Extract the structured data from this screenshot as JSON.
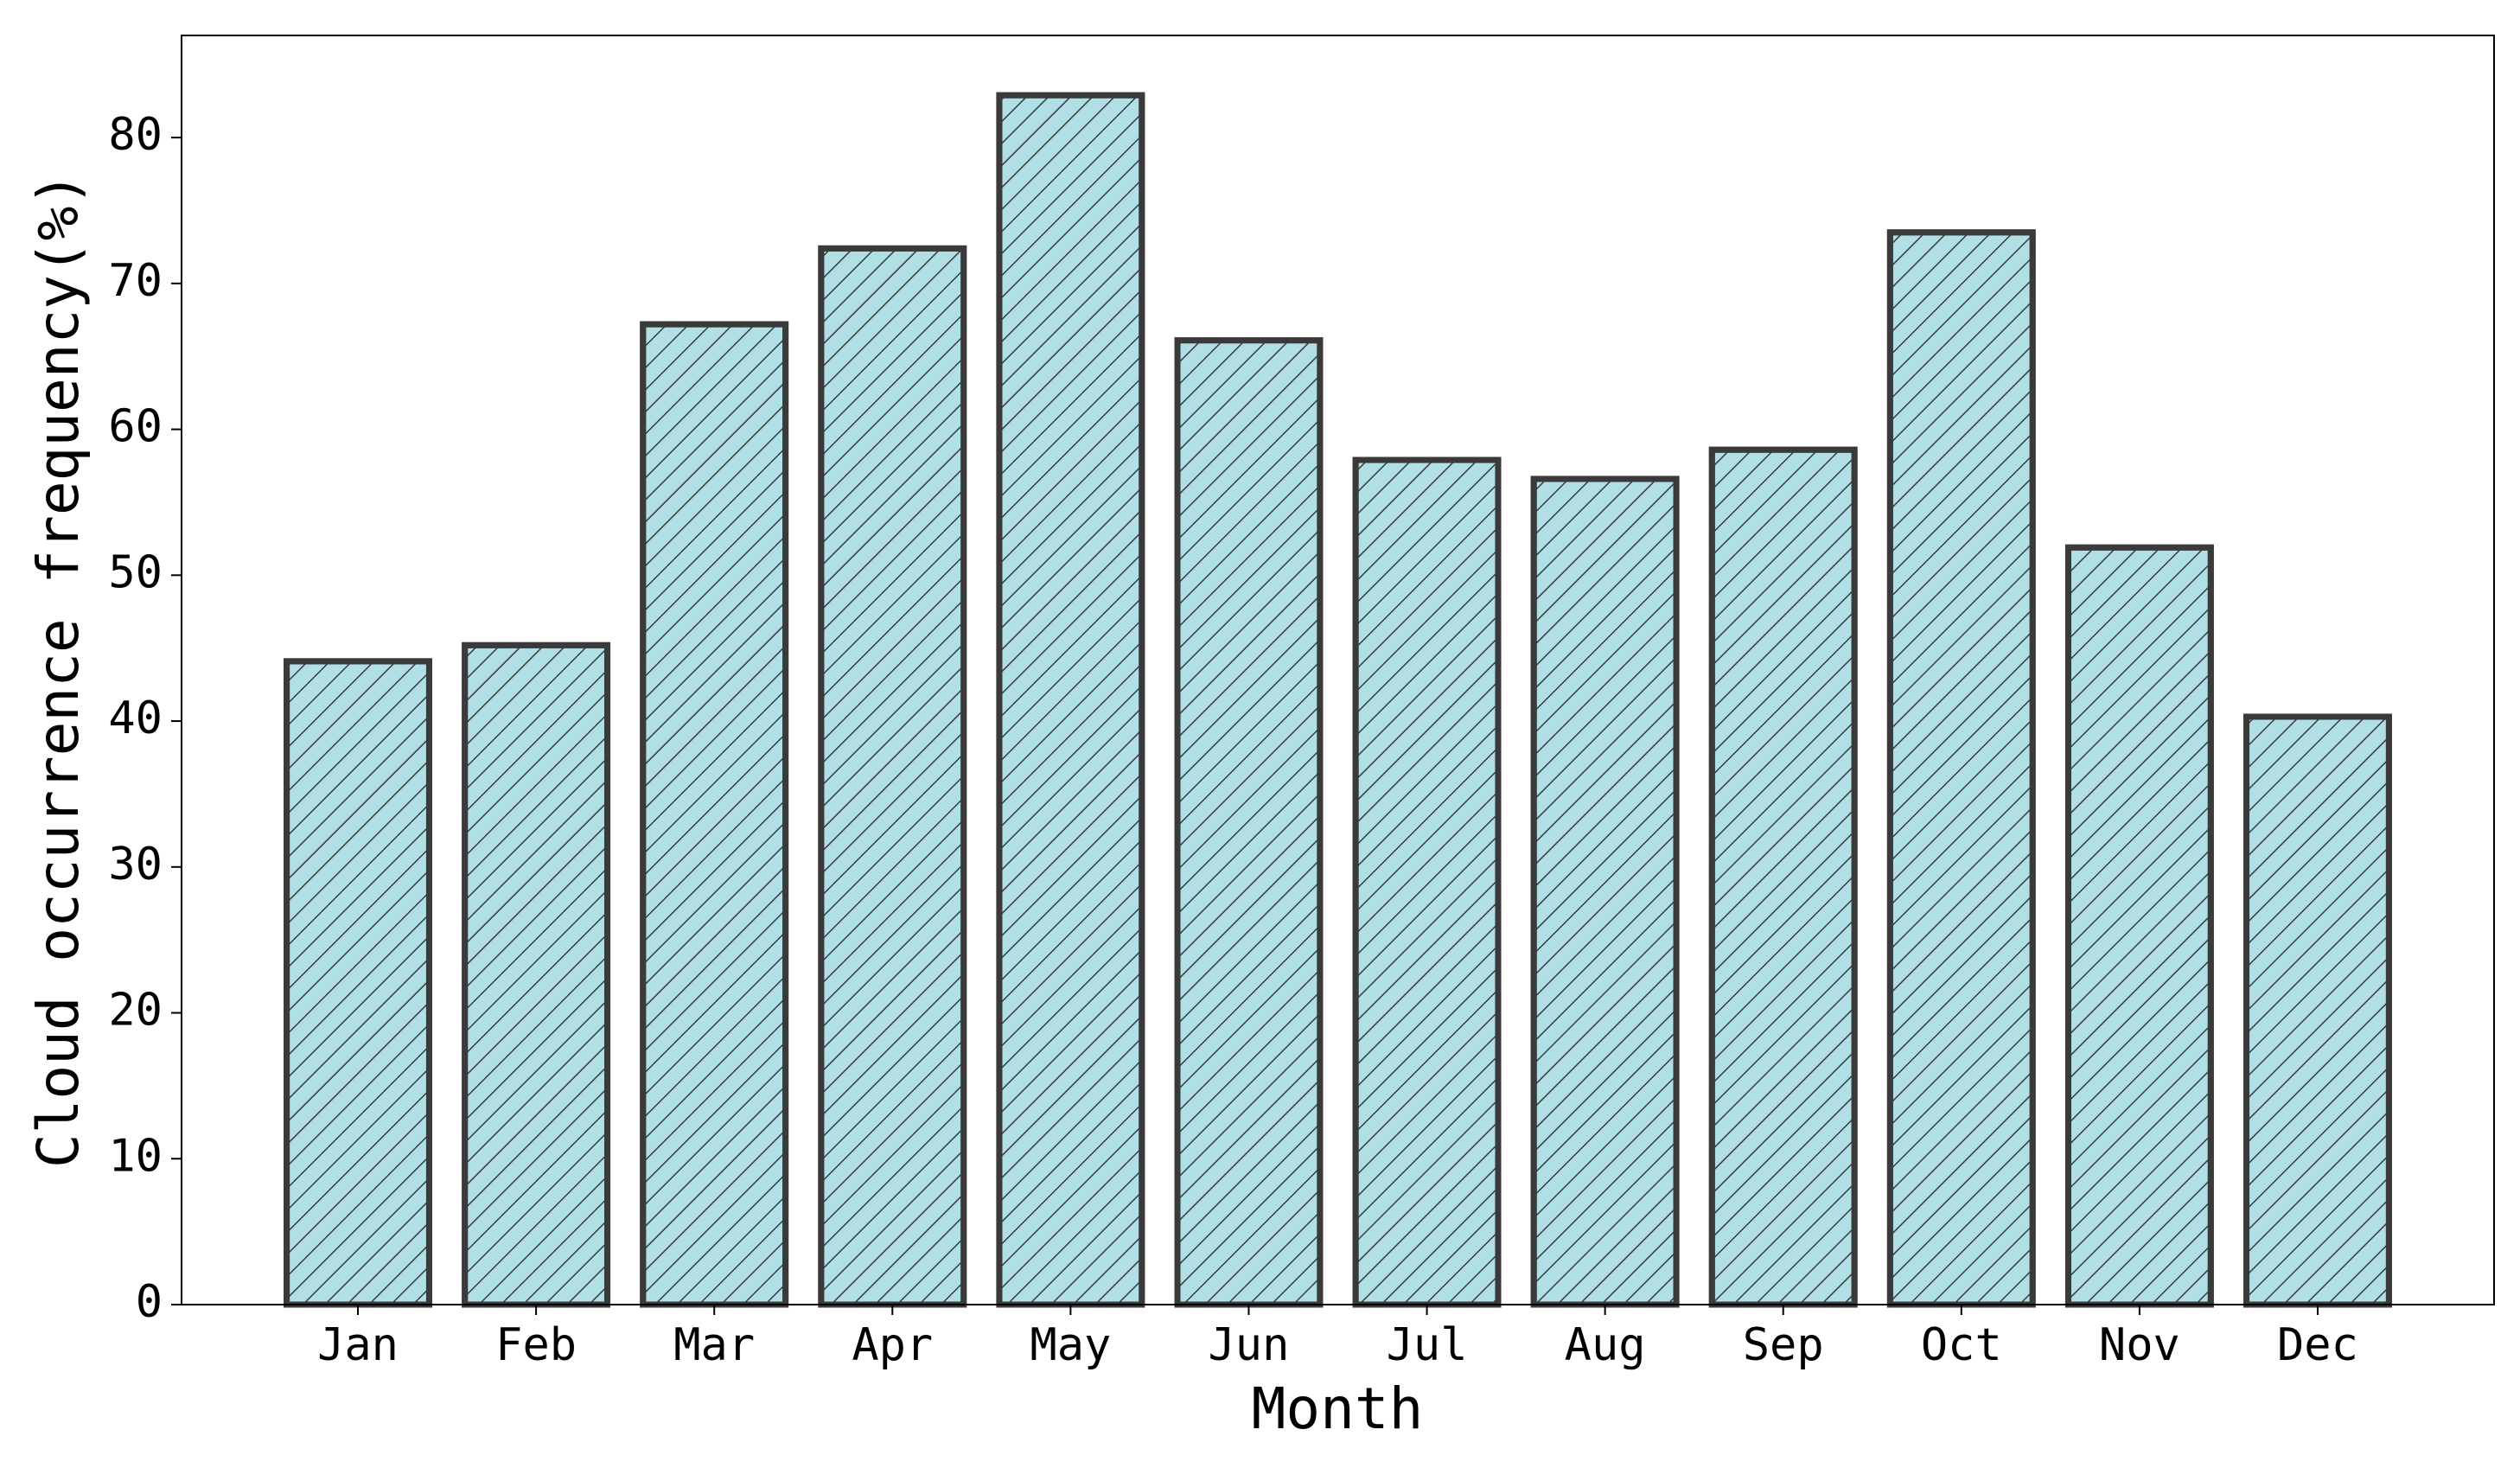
{
  "chart_data": {
    "type": "bar",
    "x_label": "Month",
    "y_label": "Cloud occurrence frequency(%)",
    "categories": [
      "Jan",
      "Feb",
      "Mar",
      "Apr",
      "May",
      "Jun",
      "Jul",
      "Aug",
      "Sep",
      "Oct",
      "Nov",
      "Dec"
    ],
    "values": [
      44.1,
      45.2,
      67.2,
      72.4,
      82.9,
      66.1,
      57.9,
      56.6,
      58.6,
      73.5,
      51.9,
      40.3
    ],
    "color": "#b0e0e6",
    "edge_color": "#3a3a3a",
    "hatch": true,
    "ylim": [
      0,
      87
    ],
    "yticks": [
      0,
      10,
      20,
      30,
      40,
      50,
      60,
      70,
      80
    ]
  }
}
